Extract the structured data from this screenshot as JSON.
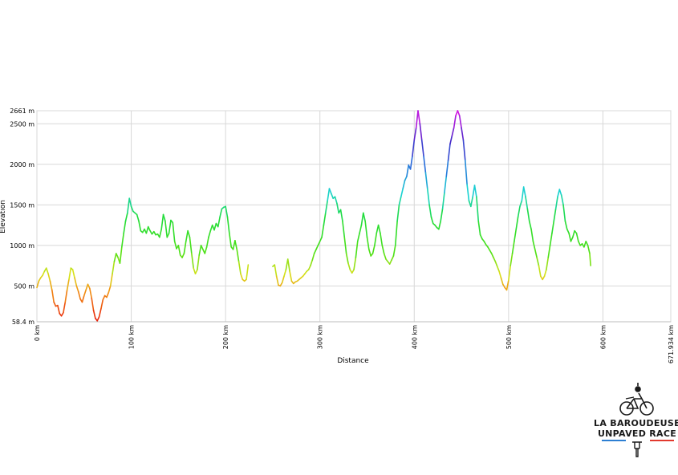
{
  "chart_data": {
    "type": "line",
    "xlabel": "Distance",
    "ylabel": "Elevation",
    "x_unit": "km",
    "y_unit": "m",
    "xlim": [
      0,
      671.934
    ],
    "ylim": [
      58.4,
      2661
    ],
    "x_ticks": [
      0,
      100,
      200,
      300,
      400,
      500,
      600,
      671.934
    ],
    "x_tick_labels": [
      "0 km",
      "100 km",
      "200 km",
      "300 km",
      "400 km",
      "500 km",
      "600 km",
      "671.934 km"
    ],
    "y_ticks": [
      58.4,
      500,
      1000,
      1500,
      2000,
      2500,
      2661
    ],
    "y_tick_labels": [
      "58.4 m",
      "500 m",
      "1000 m",
      "1500 m",
      "2000 m",
      "2500 m",
      "2661 m"
    ],
    "grid": true,
    "color_scale": "elevation (red low → green → cyan → violet high)",
    "series": [
      {
        "segments": [
          [
            [
              0,
              480
            ],
            [
              2,
              560
            ],
            [
              4,
              600
            ],
            [
              6,
              630
            ],
            [
              8,
              680
            ],
            [
              10,
              720
            ],
            [
              12,
              650
            ],
            [
              14,
              560
            ],
            [
              16,
              450
            ],
            [
              18,
              300
            ],
            [
              20,
              250
            ],
            [
              22,
              260
            ],
            [
              24,
              160
            ],
            [
              26,
              130
            ],
            [
              28,
              170
            ],
            [
              30,
              300
            ],
            [
              32,
              450
            ],
            [
              34,
              580
            ],
            [
              36,
              720
            ],
            [
              38,
              700
            ],
            [
              40,
              600
            ],
            [
              42,
              500
            ],
            [
              44,
              430
            ],
            [
              46,
              340
            ],
            [
              48,
              300
            ],
            [
              50,
              380
            ],
            [
              52,
              450
            ],
            [
              54,
              520
            ],
            [
              56,
              470
            ],
            [
              58,
              350
            ],
            [
              60,
              200
            ],
            [
              62,
              100
            ],
            [
              64,
              70
            ],
            [
              66,
              120
            ],
            [
              68,
              220
            ],
            [
              70,
              330
            ],
            [
              72,
              380
            ],
            [
              74,
              360
            ],
            [
              76,
              420
            ],
            [
              78,
              500
            ],
            [
              80,
              650
            ],
            [
              82,
              800
            ],
            [
              84,
              900
            ],
            [
              86,
              850
            ],
            [
              88,
              780
            ],
            [
              90,
              980
            ],
            [
              92,
              1150
            ],
            [
              94,
              1300
            ],
            [
              96,
              1400
            ],
            [
              98,
              1580
            ],
            [
              100,
              1480
            ],
            [
              102,
              1420
            ],
            [
              104,
              1400
            ],
            [
              106,
              1380
            ],
            [
              108,
              1300
            ],
            [
              110,
              1180
            ],
            [
              112,
              1160
            ],
            [
              114,
              1200
            ],
            [
              116,
              1150
            ],
            [
              118,
              1230
            ],
            [
              120,
              1180
            ],
            [
              122,
              1140
            ],
            [
              124,
              1170
            ],
            [
              126,
              1130
            ],
            [
              128,
              1140
            ],
            [
              130,
              1100
            ],
            [
              132,
              1200
            ],
            [
              134,
              1380
            ],
            [
              136,
              1300
            ],
            [
              138,
              1100
            ],
            [
              140,
              1150
            ],
            [
              142,
              1310
            ],
            [
              144,
              1280
            ],
            [
              146,
              1050
            ],
            [
              148,
              960
            ],
            [
              150,
              1000
            ],
            [
              152,
              880
            ],
            [
              154,
              850
            ],
            [
              156,
              900
            ],
            [
              158,
              1050
            ],
            [
              160,
              1180
            ],
            [
              162,
              1100
            ],
            [
              164,
              900
            ],
            [
              166,
              720
            ],
            [
              168,
              650
            ],
            [
              170,
              700
            ],
            [
              172,
              880
            ],
            [
              174,
              1000
            ],
            [
              176,
              950
            ],
            [
              178,
              900
            ],
            [
              180,
              980
            ],
            [
              182,
              1100
            ],
            [
              184,
              1180
            ],
            [
              186,
              1250
            ],
            [
              188,
              1190
            ],
            [
              190,
              1270
            ],
            [
              192,
              1230
            ],
            [
              194,
              1350
            ],
            [
              196,
              1450
            ],
            [
              198,
              1470
            ],
            [
              200,
              1480
            ],
            [
              202,
              1350
            ],
            [
              204,
              1150
            ],
            [
              206,
              980
            ],
            [
              208,
              950
            ],
            [
              210,
              1060
            ],
            [
              212,
              950
            ],
            [
              214,
              800
            ],
            [
              216,
              650
            ],
            [
              218,
              580
            ],
            [
              220,
              560
            ],
            [
              222,
              580
            ],
            [
              224,
              760
            ]
          ],
          [
            [
              250,
              740
            ],
            [
              252,
              760
            ],
            [
              254,
              620
            ],
            [
              256,
              510
            ],
            [
              258,
              500
            ],
            [
              260,
              540
            ],
            [
              262,
              620
            ],
            [
              264,
              700
            ],
            [
              266,
              830
            ],
            [
              268,
              680
            ],
            [
              270,
              560
            ],
            [
              272,
              530
            ],
            [
              274,
              550
            ],
            [
              276,
              560
            ],
            [
              278,
              580
            ],
            [
              280,
              600
            ],
            [
              282,
              620
            ],
            [
              284,
              650
            ],
            [
              286,
              680
            ],
            [
              288,
              700
            ],
            [
              290,
              750
            ],
            [
              292,
              820
            ],
            [
              294,
              900
            ],
            [
              296,
              950
            ],
            [
              298,
              1000
            ],
            [
              300,
              1050
            ],
            [
              302,
              1100
            ],
            [
              304,
              1250
            ],
            [
              306,
              1400
            ],
            [
              308,
              1550
            ],
            [
              310,
              1700
            ],
            [
              312,
              1640
            ],
            [
              314,
              1580
            ],
            [
              316,
              1600
            ],
            [
              318,
              1520
            ],
            [
              320,
              1400
            ],
            [
              322,
              1440
            ],
            [
              324,
              1300
            ],
            [
              326,
              1100
            ],
            [
              328,
              900
            ],
            [
              330,
              780
            ],
            [
              332,
              700
            ],
            [
              334,
              660
            ],
            [
              336,
              700
            ],
            [
              338,
              850
            ],
            [
              340,
              1050
            ],
            [
              342,
              1150
            ],
            [
              344,
              1250
            ],
            [
              346,
              1400
            ],
            [
              348,
              1300
            ],
            [
              350,
              1100
            ],
            [
              352,
              950
            ],
            [
              354,
              870
            ],
            [
              356,
              900
            ],
            [
              358,
              1000
            ],
            [
              360,
              1150
            ],
            [
              362,
              1250
            ],
            [
              364,
              1150
            ],
            [
              366,
              1000
            ],
            [
              368,
              900
            ],
            [
              370,
              830
            ],
            [
              372,
              800
            ],
            [
              374,
              770
            ],
            [
              376,
              820
            ],
            [
              378,
              870
            ],
            [
              380,
              1000
            ],
            [
              382,
              1300
            ],
            [
              384,
              1500
            ],
            [
              386,
              1600
            ],
            [
              388,
              1700
            ],
            [
              390,
              1800
            ],
            [
              392,
              1850
            ],
            [
              394,
              1990
            ],
            [
              396,
              1940
            ],
            [
              398,
              2100
            ],
            [
              400,
              2300
            ],
            [
              402,
              2450
            ],
            [
              404,
              2661
            ],
            [
              406,
              2500
            ],
            [
              408,
              2300
            ],
            [
              410,
              2100
            ],
            [
              412,
              1900
            ],
            [
              414,
              1700
            ],
            [
              416,
              1500
            ],
            [
              418,
              1350
            ],
            [
              420,
              1270
            ],
            [
              422,
              1250
            ],
            [
              424,
              1220
            ],
            [
              426,
              1200
            ],
            [
              428,
              1300
            ],
            [
              430,
              1450
            ],
            [
              432,
              1650
            ],
            [
              434,
              1850
            ],
            [
              436,
              2050
            ],
            [
              438,
              2250
            ],
            [
              440,
              2350
            ],
            [
              442,
              2450
            ],
            [
              444,
              2600
            ],
            [
              446,
              2661
            ],
            [
              448,
              2600
            ],
            [
              450,
              2450
            ],
            [
              452,
              2300
            ],
            [
              454,
              2050
            ],
            [
              456,
              1750
            ],
            [
              458,
              1550
            ],
            [
              460,
              1480
            ],
            [
              462,
              1600
            ],
            [
              464,
              1740
            ],
            [
              466,
              1600
            ],
            [
              468,
              1300
            ],
            [
              470,
              1130
            ],
            [
              472,
              1080
            ],
            [
              474,
              1050
            ],
            [
              476,
              1010
            ],
            [
              478,
              980
            ],
            [
              480,
              940
            ],
            [
              482,
              900
            ],
            [
              484,
              850
            ],
            [
              486,
              800
            ],
            [
              488,
              740
            ],
            [
              490,
              680
            ],
            [
              492,
              600
            ],
            [
              494,
              520
            ],
            [
              496,
              480
            ],
            [
              498,
              450
            ],
            [
              500,
              570
            ],
            [
              502,
              750
            ],
            [
              504,
              900
            ],
            [
              506,
              1050
            ],
            [
              508,
              1200
            ],
            [
              510,
              1350
            ],
            [
              512,
              1480
            ],
            [
              514,
              1550
            ],
            [
              516,
              1720
            ],
            [
              518,
              1600
            ],
            [
              520,
              1450
            ],
            [
              522,
              1300
            ],
            [
              524,
              1200
            ],
            [
              526,
              1050
            ],
            [
              528,
              950
            ],
            [
              530,
              850
            ],
            [
              532,
              750
            ],
            [
              534,
              620
            ],
            [
              536,
              580
            ],
            [
              538,
              620
            ],
            [
              540,
              700
            ],
            [
              542,
              850
            ],
            [
              544,
              1000
            ],
            [
              546,
              1150
            ],
            [
              548,
              1300
            ],
            [
              550,
              1450
            ],
            [
              552,
              1600
            ],
            [
              554,
              1690
            ],
            [
              556,
              1620
            ],
            [
              558,
              1500
            ],
            [
              560,
              1300
            ],
            [
              562,
              1200
            ],
            [
              564,
              1150
            ],
            [
              566,
              1050
            ],
            [
              568,
              1100
            ],
            [
              570,
              1180
            ],
            [
              572,
              1150
            ],
            [
              574,
              1050
            ],
            [
              576,
              1000
            ],
            [
              578,
              1020
            ],
            [
              580,
              980
            ],
            [
              582,
              1050
            ],
            [
              584,
              1000
            ],
            [
              586,
              900
            ],
            [
              587,
              750
            ]
          ]
        ]
      }
    ]
  },
  "logo": {
    "line1": "LA BAROUDEUSE",
    "line2": "UNPAVED RACE",
    "colors": {
      "blue": "#2d7fd3",
      "red": "#e23a2e",
      "ink": "#1a1a1a"
    }
  }
}
